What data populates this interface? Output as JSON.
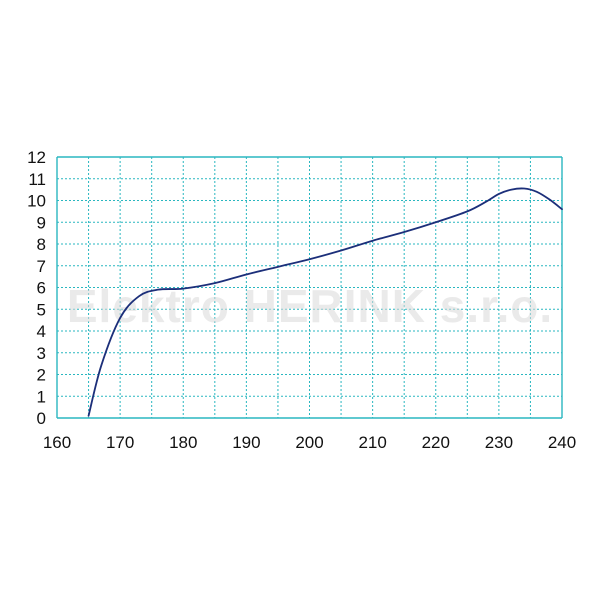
{
  "watermark": "Elektro HERINK s.r.o.",
  "colors": {
    "grid": "#2ab7c0",
    "line": "#1c2f7a",
    "tick_text": "#111111",
    "watermark": "#d8d8d8"
  },
  "chart_data": {
    "type": "line",
    "title": "",
    "xlabel": "",
    "ylabel": "",
    "xlim": [
      160,
      240
    ],
    "ylim": [
      0,
      12
    ],
    "x_ticks": [
      160,
      170,
      180,
      190,
      200,
      210,
      220,
      230,
      240
    ],
    "y_ticks": [
      0,
      1,
      2,
      3,
      4,
      5,
      6,
      7,
      8,
      9,
      10,
      11,
      12
    ],
    "x_tick_labels": [
      "160",
      "170",
      "180",
      "190",
      "200",
      "210",
      "220",
      "230",
      "240"
    ],
    "y_tick_labels": [
      "0",
      "1",
      "2",
      "3",
      "4",
      "5",
      "6",
      "7",
      "8",
      "9",
      "10",
      "11",
      "12"
    ],
    "grid": true,
    "grid_style": "dashed",
    "series": [
      {
        "x": [
          165,
          167,
          170,
          173,
          176,
          180,
          185,
          190,
          195,
          200,
          205,
          210,
          215,
          220,
          225,
          228,
          230,
          232,
          234,
          236,
          238,
          240
        ],
        "y": [
          0.1,
          2.4,
          4.6,
          5.6,
          5.9,
          5.95,
          6.2,
          6.6,
          6.95,
          7.3,
          7.7,
          8.15,
          8.55,
          9.0,
          9.5,
          9.95,
          10.3,
          10.5,
          10.55,
          10.4,
          10.05,
          9.6
        ]
      }
    ]
  }
}
